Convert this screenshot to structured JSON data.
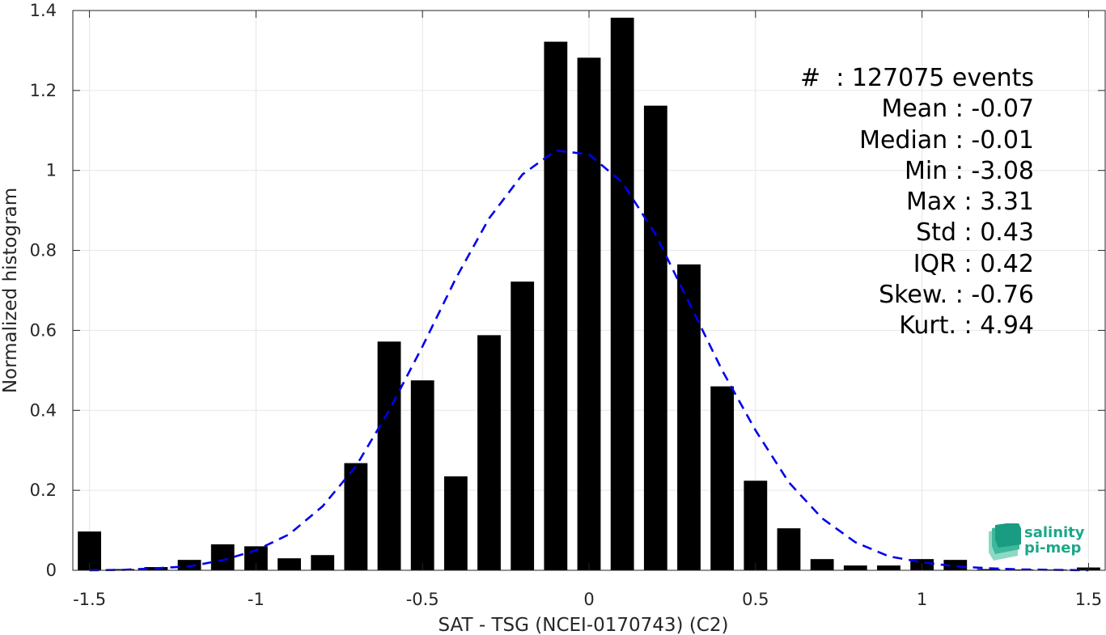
{
  "chart_data": {
    "type": "bar",
    "xlabel": "SAT - TSG (NCEI-0170743) (C2)",
    "ylabel": "Normalized histogram",
    "xlim": [
      -1.55,
      1.55
    ],
    "ylim": [
      0,
      1.4
    ],
    "xticks": [
      -1.5,
      -1,
      -0.5,
      0,
      0.5,
      1,
      1.5
    ],
    "xtick_labels": [
      "-1.5",
      "-1",
      "-0.5",
      "0",
      "0.5",
      "1",
      "1.5"
    ],
    "yticks": [
      0,
      0.2,
      0.4,
      0.6,
      0.8,
      1,
      1.2,
      1.4
    ],
    "ytick_labels": [
      "0",
      "0.2",
      "0.4",
      "0.6",
      "0.8",
      "1",
      "1.2",
      "1.4"
    ],
    "grid": true,
    "bar_color": "#000000",
    "bin_width": 0.1,
    "bins": [
      {
        "x": -1.5,
        "y": 0.097
      },
      {
        "x": -1.4,
        "y": 0.003
      },
      {
        "x": -1.3,
        "y": 0.008
      },
      {
        "x": -1.2,
        "y": 0.026
      },
      {
        "x": -1.1,
        "y": 0.065
      },
      {
        "x": -1.0,
        "y": 0.06
      },
      {
        "x": -0.9,
        "y": 0.03
      },
      {
        "x": -0.8,
        "y": 0.038
      },
      {
        "x": -0.7,
        "y": 0.268
      },
      {
        "x": -0.6,
        "y": 0.572
      },
      {
        "x": -0.5,
        "y": 0.475
      },
      {
        "x": -0.4,
        "y": 0.235
      },
      {
        "x": -0.3,
        "y": 0.588
      },
      {
        "x": -0.2,
        "y": 0.722
      },
      {
        "x": -0.1,
        "y": 1.322
      },
      {
        "x": 0.0,
        "y": 1.282
      },
      {
        "x": 0.1,
        "y": 1.382
      },
      {
        "x": 0.2,
        "y": 1.162
      },
      {
        "x": 0.3,
        "y": 0.765
      },
      {
        "x": 0.4,
        "y": 0.46
      },
      {
        "x": 0.5,
        "y": 0.224
      },
      {
        "x": 0.6,
        "y": 0.105
      },
      {
        "x": 0.7,
        "y": 0.028
      },
      {
        "x": 0.8,
        "y": 0.012
      },
      {
        "x": 0.9,
        "y": 0.012
      },
      {
        "x": 1.0,
        "y": 0.028
      },
      {
        "x": 1.1,
        "y": 0.026
      },
      {
        "x": 1.2,
        "y": 0.003
      },
      {
        "x": 1.3,
        "y": 0.002
      },
      {
        "x": 1.4,
        "y": 0.002
      },
      {
        "x": 1.5,
        "y": 0.007
      }
    ],
    "fit_curve": {
      "style": "dashed",
      "color": "#0000ee",
      "x": [
        -1.5,
        -1.4,
        -1.3,
        -1.2,
        -1.1,
        -1.0,
        -0.9,
        -0.8,
        -0.7,
        -0.6,
        -0.5,
        -0.4,
        -0.3,
        -0.2,
        -0.1,
        0.0,
        0.1,
        0.2,
        0.3,
        0.4,
        0.5,
        0.6,
        0.7,
        0.8,
        0.9,
        1.0,
        1.1,
        1.2,
        1.3,
        1.4,
        1.5
      ],
      "y": [
        0.0,
        0.001,
        0.005,
        0.01,
        0.025,
        0.05,
        0.09,
        0.16,
        0.26,
        0.4,
        0.56,
        0.73,
        0.88,
        0.99,
        1.05,
        1.04,
        0.97,
        0.84,
        0.67,
        0.5,
        0.35,
        0.22,
        0.13,
        0.07,
        0.035,
        0.02,
        0.01,
        0.005,
        0.002,
        0.001,
        0.0
      ]
    }
  },
  "stats": {
    "events": "#  : 127075 events",
    "mean": "Mean : -0.07",
    "median": "Median : -0.01",
    "min": "Min : -3.08",
    "max": "Max : 3.31",
    "std": "Std : 0.43",
    "iqr": "IQR : 0.42",
    "skew": "Skew. : -0.76",
    "kurt": "Kurt. : 4.94"
  },
  "logo": {
    "line1": "salinity",
    "line2": "pi-mep"
  }
}
